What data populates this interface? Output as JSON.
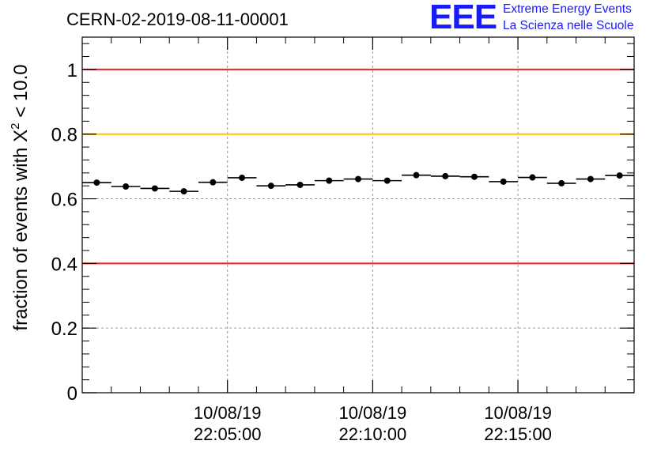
{
  "logo": {
    "mark": "EEE",
    "line1": "Extreme Energy Events",
    "line2": "La Scienza nelle Scuole",
    "color": "#1a1aff"
  },
  "chart_data": {
    "type": "scatter",
    "title": "CERN-02-2019-08-11-00001",
    "ylabel": "fraction of events with χ² < 10.0",
    "ylabel_parts": {
      "main": "fraction of events with X",
      "sup": "2",
      "tail": " < 10.0"
    },
    "xlabel": "",
    "ylim": [
      0,
      1.1
    ],
    "yticks": [
      0,
      0.2,
      0.4,
      0.6,
      0.8,
      1
    ],
    "ytick_labels": [
      "0",
      "0.2",
      "0.4",
      "0.6",
      "0.8",
      "1"
    ],
    "xlim_minutes": [
      0,
      19
    ],
    "xticks": [
      {
        "minute": 5,
        "date": "10/08/19",
        "time": "22:05:00"
      },
      {
        "minute": 10,
        "date": "10/08/19",
        "time": "22:10:00"
      },
      {
        "minute": 15,
        "date": "10/08/19",
        "time": "22:15:00"
      }
    ],
    "x_origin_time": "22:00:00",
    "grid": true,
    "reference_lines": [
      {
        "y": 1.0,
        "color": "#e8231e"
      },
      {
        "y": 0.8,
        "color": "#ffc300"
      },
      {
        "y": 0.4,
        "color": "#e8231e"
      }
    ],
    "series": [
      {
        "x_minutes": [
          0.5,
          1.5,
          2.5,
          3.5,
          4.5,
          5.5,
          6.5,
          7.5,
          8.5,
          9.5,
          10.5,
          11.5,
          12.5,
          13.5,
          14.5,
          15.5,
          16.5,
          17.5,
          18.5
        ],
        "values": [
          0.65,
          0.638,
          0.632,
          0.623,
          0.651,
          0.665,
          0.64,
          0.643,
          0.656,
          0.661,
          0.656,
          0.673,
          0.67,
          0.668,
          0.653,
          0.666,
          0.648,
          0.661,
          0.672
        ],
        "color": "#000000"
      }
    ]
  }
}
